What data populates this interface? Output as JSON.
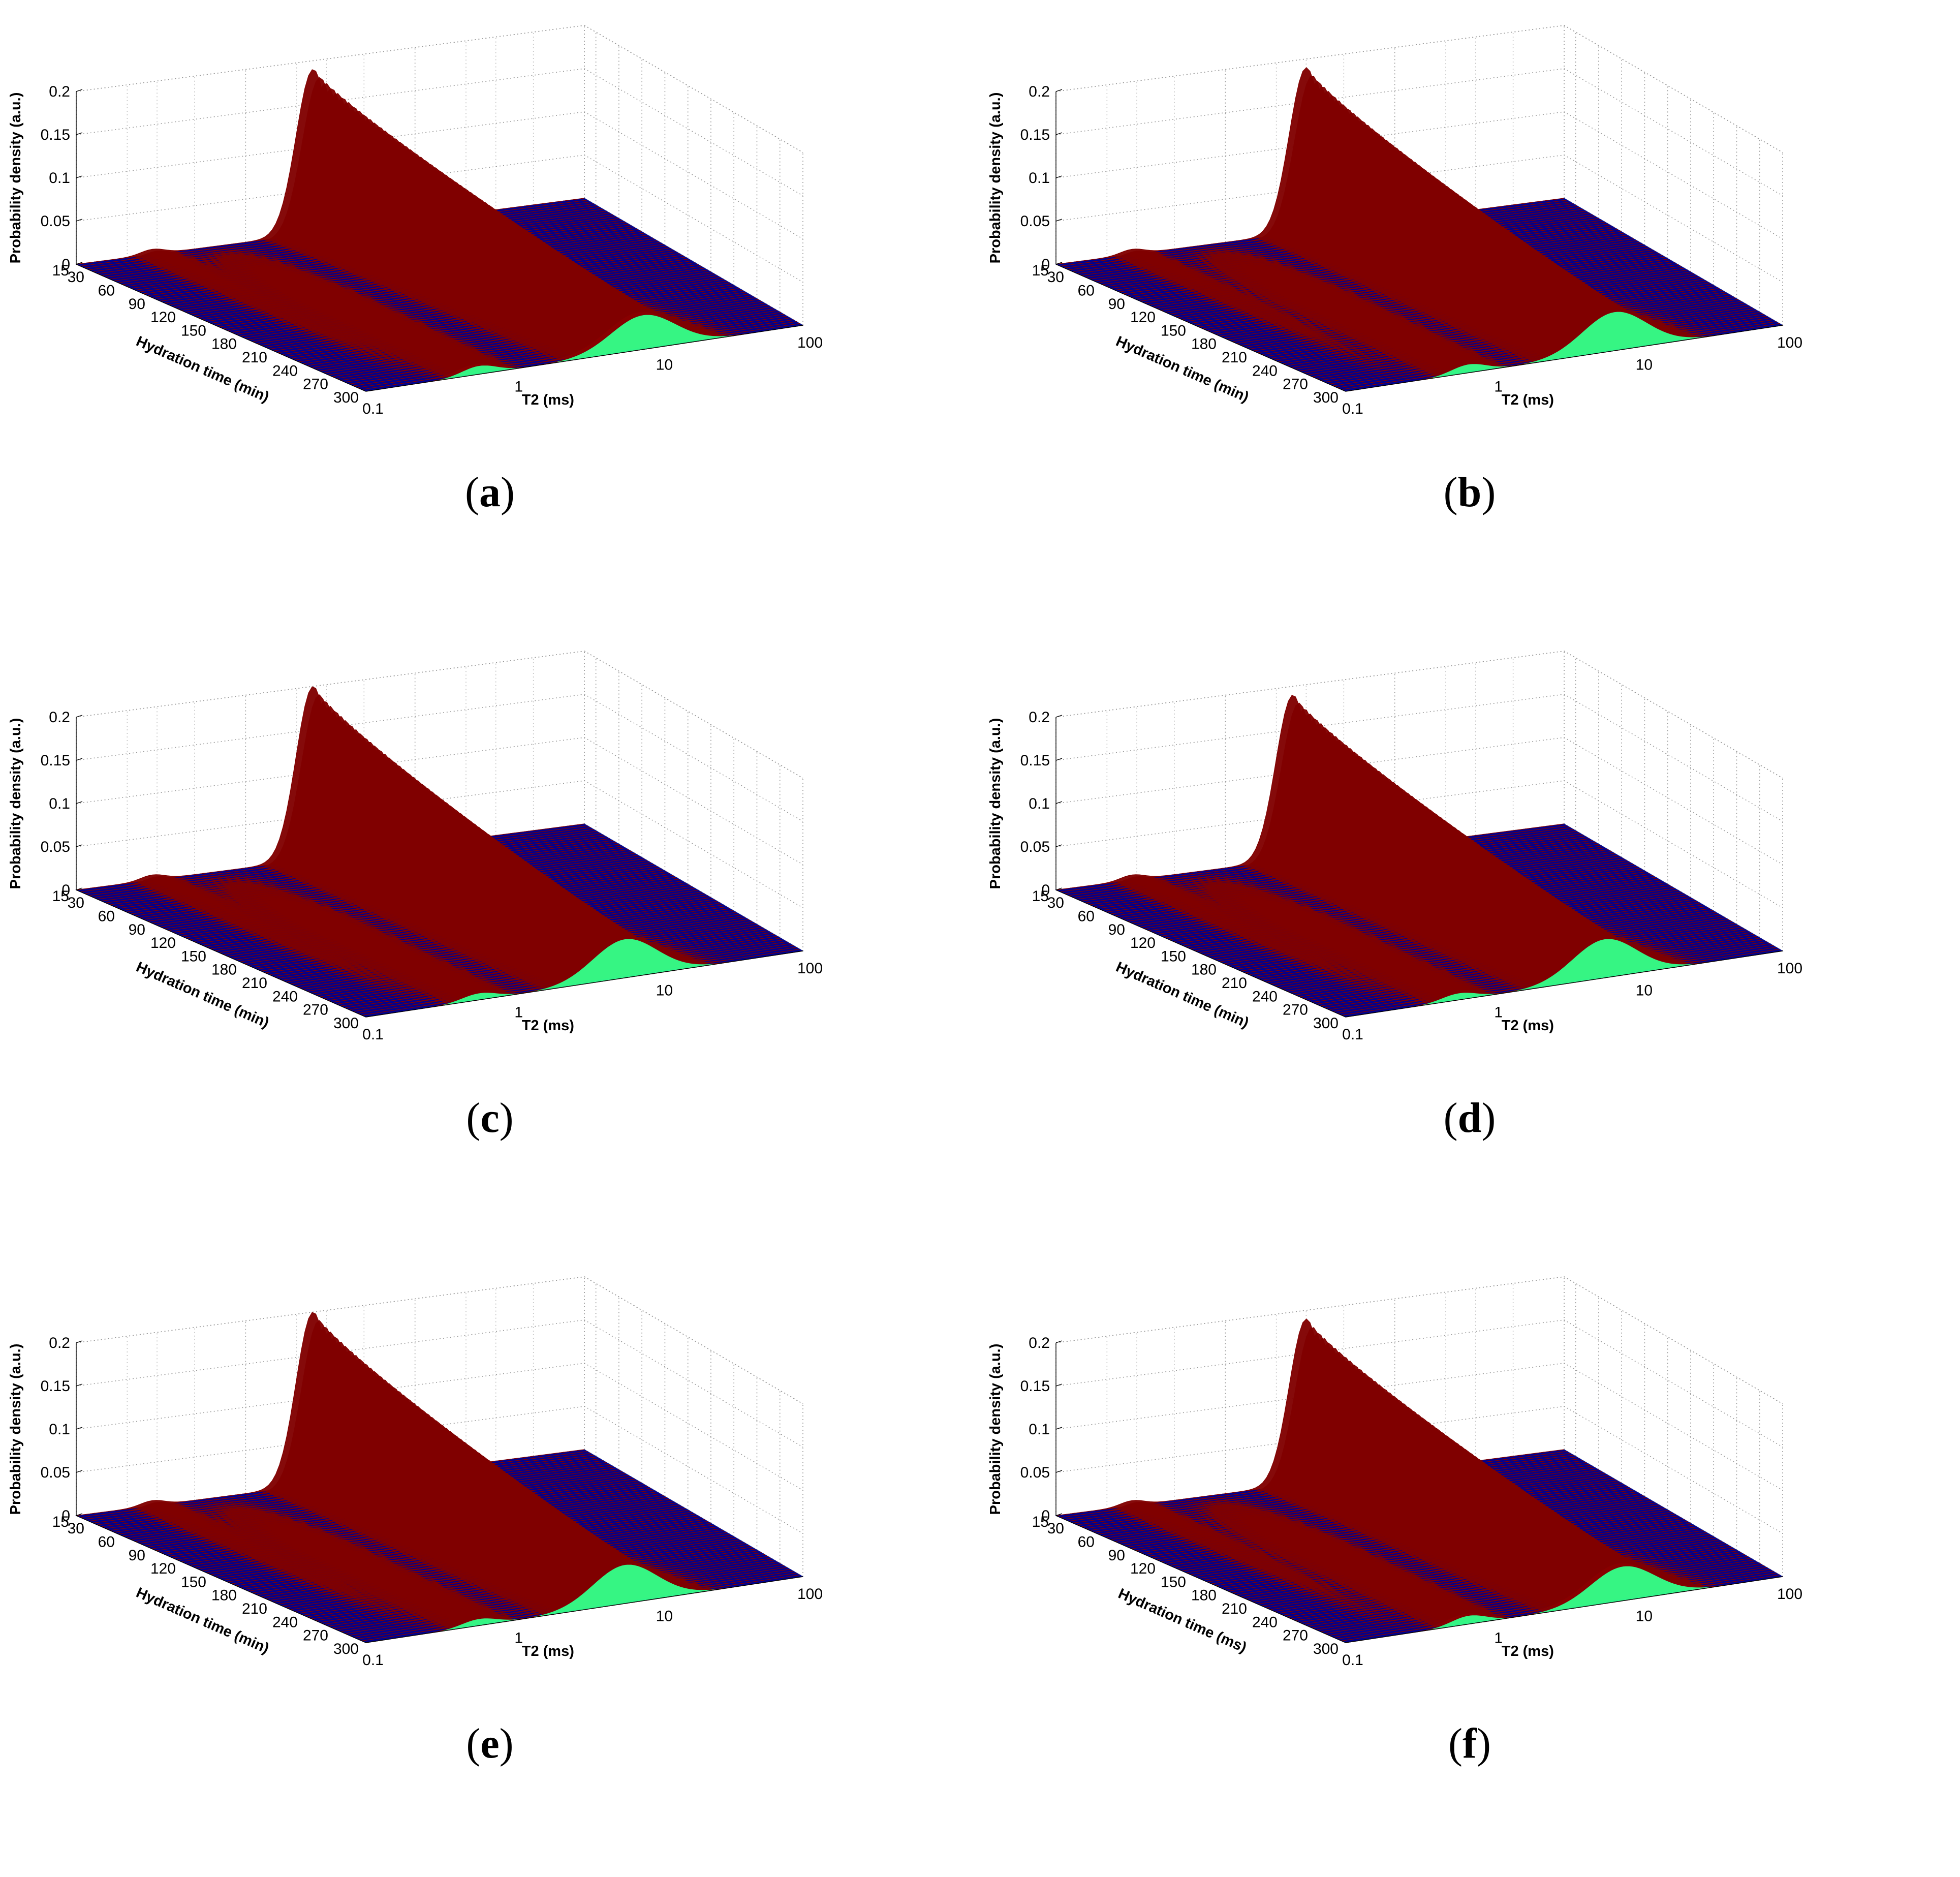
{
  "chart_data": [
    {
      "panel": "a",
      "type": "surface",
      "title": "",
      "xlabel": "T2 (ms)",
      "ylabel": "Hydration time (min)",
      "zlabel": "Probability density (a.u.)",
      "x_scale": "log",
      "x_ticks": [
        "0.1",
        "1",
        "10",
        "100"
      ],
      "y_ticks": [
        "15",
        "30",
        "60",
        "90",
        "120",
        "150",
        "180",
        "210",
        "240",
        "270",
        "300"
      ],
      "z_ticks": [
        "0",
        "0.05",
        "0.1",
        "0.15",
        "0.2"
      ],
      "xlim": [
        0.1,
        100
      ],
      "ylim": [
        15,
        300
      ],
      "zlim": [
        0,
        0.2
      ],
      "grid": true,
      "peak": {
        "t2_at_start": 2.5,
        "t2_at_end": 8,
        "height_at_start": 0.19,
        "height_at_end": 0.04,
        "secondary_t2": 0.6,
        "secondary_height": 0.01
      }
    },
    {
      "panel": "b",
      "type": "surface",
      "title": "",
      "xlabel": "T2 (ms)",
      "ylabel": "Hydration time (min)",
      "zlabel": "Probability density (a.u.)",
      "x_scale": "log",
      "x_ticks": [
        "0.1",
        "1",
        "10",
        "100"
      ],
      "y_ticks": [
        "15",
        "30",
        "60",
        "90",
        "120",
        "150",
        "180",
        "210",
        "240",
        "270",
        "300"
      ],
      "z_ticks": [
        "0",
        "0.05",
        "0.1",
        "0.15",
        "0.2"
      ],
      "xlim": [
        0.1,
        100
      ],
      "ylim": [
        15,
        300
      ],
      "zlim": [
        0,
        0.2
      ],
      "grid": true,
      "peak": {
        "t2_at_start": 3,
        "t2_at_end": 7,
        "height_at_start": 0.19,
        "height_at_end": 0.045,
        "secondary_t2": 0.7,
        "secondary_height": 0.01
      }
    },
    {
      "panel": "c",
      "type": "surface",
      "title": "",
      "xlabel": "T2 (ms)",
      "ylabel": "Hydration time (min)",
      "zlabel": "Probability density (a.u.)",
      "x_scale": "log",
      "x_ticks": [
        "0.1",
        "1",
        "10",
        "100"
      ],
      "y_ticks": [
        "15",
        "30",
        "60",
        "90",
        "120",
        "150",
        "180",
        "210",
        "240",
        "270",
        "300"
      ],
      "z_ticks": [
        "0",
        "0.05",
        "0.1",
        "0.15",
        "0.2"
      ],
      "xlim": [
        0.1,
        100
      ],
      "ylim": [
        15,
        300
      ],
      "zlim": [
        0,
        0.2
      ],
      "grid": true,
      "peak": {
        "t2_at_start": 2.5,
        "t2_at_end": 6,
        "height_at_start": 0.2,
        "height_at_end": 0.045,
        "secondary_t2": 0.6,
        "secondary_height": 0.008
      }
    },
    {
      "panel": "d",
      "type": "surface",
      "title": "",
      "xlabel": "T2 (ms)",
      "ylabel": "Hydration time (min)",
      "zlabel": "Probability density (a.u.)",
      "x_scale": "log",
      "x_ticks": [
        "0.1",
        "1",
        "10",
        "100"
      ],
      "y_ticks": [
        "15",
        "30",
        "60",
        "90",
        "120",
        "150",
        "180",
        "210",
        "240",
        "270",
        "300"
      ],
      "z_ticks": [
        "0",
        "0.05",
        "0.1",
        "0.15",
        "0.2"
      ],
      "xlim": [
        0.1,
        100
      ],
      "ylim": [
        15,
        300
      ],
      "zlim": [
        0,
        0.2
      ],
      "grid": true,
      "peak": {
        "t2_at_start": 2.5,
        "t2_at_end": 6,
        "height_at_start": 0.19,
        "height_at_end": 0.045,
        "secondary_t2": 0.6,
        "secondary_height": 0.008
      }
    },
    {
      "panel": "e",
      "type": "surface",
      "title": "",
      "xlabel": "T2 (ms)",
      "ylabel": "Hydration time (min)",
      "zlabel": "Probability density (a.u.)",
      "x_scale": "log",
      "x_ticks": [
        "0.1",
        "1",
        "10",
        "100"
      ],
      "y_ticks": [
        "15",
        "30",
        "60",
        "90",
        "120",
        "150",
        "180",
        "210",
        "240",
        "270",
        "300"
      ],
      "z_ticks": [
        "0",
        "0.05",
        "0.1",
        "0.15",
        "0.2"
      ],
      "xlim": [
        0.1,
        100
      ],
      "ylim": [
        15,
        300
      ],
      "zlim": [
        0,
        0.2
      ],
      "grid": true,
      "peak": {
        "t2_at_start": 2.5,
        "t2_at_end": 6,
        "height_at_start": 0.2,
        "height_at_end": 0.045,
        "secondary_t2": 0.6,
        "secondary_height": 0.008
      }
    },
    {
      "panel": "f",
      "type": "surface",
      "title": "",
      "xlabel": "T2 (ms)",
      "ylabel": "Hydration time (ms)",
      "zlabel": "Probability density (a.u.)",
      "x_scale": "log",
      "x_ticks": [
        "0.1",
        "1",
        "10",
        "100"
      ],
      "y_ticks": [
        "15",
        "30",
        "60",
        "90",
        "120",
        "150",
        "180",
        "210",
        "240",
        "270",
        "300"
      ],
      "z_ticks": [
        "0",
        "0.05",
        "0.1",
        "0.15",
        "0.2"
      ],
      "xlim": [
        0.1,
        100
      ],
      "ylim": [
        15,
        300
      ],
      "zlim": [
        0,
        0.2
      ],
      "grid": true,
      "peak": {
        "t2_at_start": 3,
        "t2_at_end": 8,
        "height_at_start": 0.19,
        "height_at_end": 0.04,
        "secondary_t2": 0.7,
        "secondary_height": 0.01
      }
    }
  ],
  "captions": [
    {
      "open": "(",
      "letter": "a",
      "close": ")"
    },
    {
      "open": "(",
      "letter": "b",
      "close": ")"
    },
    {
      "open": "(",
      "letter": "c",
      "close": ")"
    },
    {
      "open": "(",
      "letter": "d",
      "close": ")"
    },
    {
      "open": "(",
      "letter": "e",
      "close": ")"
    },
    {
      "open": "(",
      "letter": "f",
      "close": ")"
    }
  ],
  "colors": {
    "floor": "#00008f",
    "floor_edge": "#001a9c",
    "grid": "#9a9a9a",
    "colormap": "jet"
  }
}
